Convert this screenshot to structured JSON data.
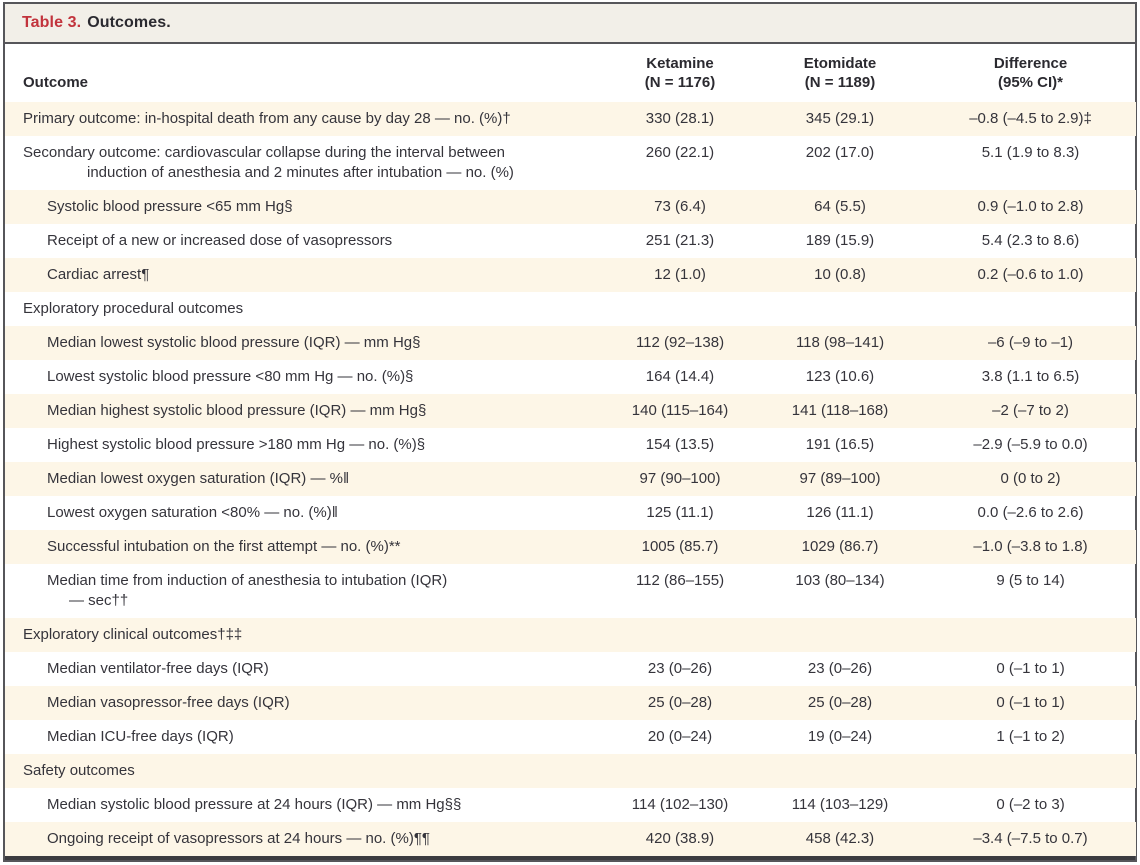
{
  "title": {
    "number": "Table 3.",
    "caption": "Outcomes."
  },
  "columns": [
    {
      "line1": "Outcome",
      "line2": ""
    },
    {
      "line1": "Ketamine",
      "line2": "(N = 1176)"
    },
    {
      "line1": "Etomidate",
      "line2": "(N = 1189)"
    },
    {
      "line1": "Difference",
      "line2": "(95% CI)*"
    }
  ],
  "rows": [
    {
      "label": "Primary outcome: in-hospital death from any cause by day 28 — no. (%)†",
      "indent": 0,
      "values": [
        "330 (28.1)",
        "345 (29.1)",
        "–0.8 (–4.5 to 2.9)‡"
      ]
    },
    {
      "label": "Secondary outcome: cardiovascular collapse during the interval between",
      "label2": "induction of anesthesia and 2 minutes after intubation — no. (%)",
      "indent": 0,
      "values": [
        "260 (22.1)",
        "202 (17.0)",
        "5.1 (1.9 to 8.3)"
      ]
    },
    {
      "label": "Systolic blood pressure <65 mm Hg§",
      "indent": 1,
      "values": [
        "73 (6.4)",
        "64 (5.5)",
        "0.9 (–1.0 to 2.8)"
      ]
    },
    {
      "label": "Receipt of a new or increased dose of vasopressors",
      "indent": 1,
      "values": [
        "251 (21.3)",
        "189 (15.9)",
        "5.4 (2.3 to 8.6)"
      ]
    },
    {
      "label": "Cardiac arrest¶",
      "indent": 1,
      "values": [
        "12 (1.0)",
        "10 (0.8)",
        "0.2 (–0.6 to 1.0)"
      ]
    },
    {
      "label": "Exploratory procedural outcomes",
      "indent": 0,
      "values": [
        "",
        "",
        ""
      ]
    },
    {
      "label": "Median lowest systolic blood pressure (IQR) — mm Hg§",
      "indent": 1,
      "values": [
        "112 (92–138)",
        "118 (98–141)",
        "–6 (–9 to –1)"
      ]
    },
    {
      "label": "Lowest systolic blood pressure <80 mm Hg — no. (%)§",
      "indent": 1,
      "values": [
        "164 (14.4)",
        "123 (10.6)",
        "3.8 (1.1 to 6.5)"
      ]
    },
    {
      "label": "Median highest systolic blood pressure (IQR) — mm Hg§",
      "indent": 1,
      "values": [
        "140 (115–164)",
        "141 (118–168)",
        "–2 (–7 to 2)"
      ]
    },
    {
      "label": "Highest systolic blood pressure >180 mm Hg — no. (%)§",
      "indent": 1,
      "values": [
        "154 (13.5)",
        "191 (16.5)",
        "–2.9 (–5.9 to 0.0)"
      ]
    },
    {
      "label": "Median lowest oxygen saturation (IQR) — %‖",
      "indent": 1,
      "values": [
        "97 (90–100)",
        "97 (89–100)",
        "0 (0 to 2)"
      ]
    },
    {
      "label": "Lowest oxygen saturation <80% — no. (%)‖",
      "indent": 1,
      "values": [
        "125 (11.1)",
        "126 (11.1)",
        "0.0 (–2.6 to 2.6)"
      ]
    },
    {
      "label": "Successful intubation on the first attempt — no. (%)**",
      "indent": 1,
      "values": [
        "1005 (85.7)",
        "1029 (86.7)",
        "–1.0 (–3.8 to 1.8)"
      ]
    },
    {
      "label": "Median time from induction of anesthesia to intubation (IQR)",
      "label2": "— sec††",
      "indent": 1,
      "values": [
        "112 (86–155)",
        "103 (80–134)",
        "9 (5 to 14)"
      ]
    },
    {
      "label": "Exploratory clinical outcomes†‡‡",
      "indent": 0,
      "values": [
        "",
        "",
        ""
      ]
    },
    {
      "label": "Median ventilator-free days (IQR)",
      "indent": 1,
      "values": [
        "23 (0–26)",
        "23 (0–26)",
        "0 (–1 to 1)"
      ]
    },
    {
      "label": "Median vasopressor-free days (IQR)",
      "indent": 1,
      "values": [
        "25 (0–28)",
        "25 (0–28)",
        "0 (–1 to 1)"
      ]
    },
    {
      "label": "Median ICU-free days (IQR)",
      "indent": 1,
      "values": [
        "20 (0–24)",
        "19 (0–24)",
        "1 (–1 to 2)"
      ]
    },
    {
      "label": "Safety outcomes",
      "indent": 0,
      "values": [
        "",
        "",
        ""
      ]
    },
    {
      "label": "Median systolic blood pressure at 24 hours (IQR) — mm Hg§§",
      "indent": 1,
      "values": [
        "114 (102–130)",
        "114 (103–129)",
        "0 (–2 to 3)"
      ]
    },
    {
      "label": "Ongoing receipt of vasopressors at 24 hours — no. (%)¶¶",
      "indent": 1,
      "values": [
        "420 (38.9)",
        "458 (42.3)",
        "–3.4 (–7.5 to 0.7)"
      ]
    }
  ],
  "colors": {
    "accent_red": "#c2333c",
    "row_shade": "#fdf6e7",
    "title_bg": "#f2efe8",
    "border": "#56565a",
    "bottom_rule": "#3c3c40",
    "text": "#35343b"
  }
}
